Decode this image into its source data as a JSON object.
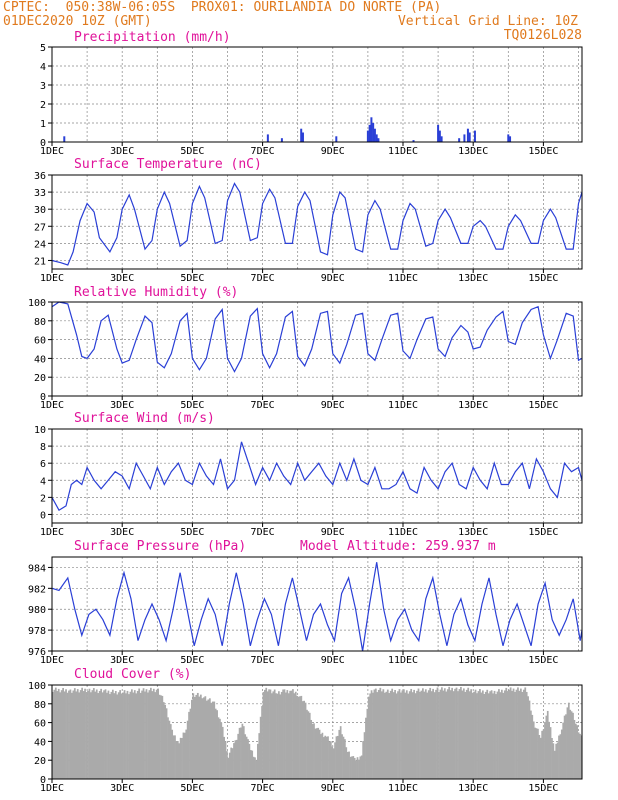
{
  "header": {
    "line1_left": "CPTEC:  050:38W-06:05S  PROX01: OURILANDIA DO NORTE (PA)",
    "line2_left": "01DEC2020 10Z (GMT)",
    "line2_right": "Vertical Grid Line: 10Z",
    "line3_right": "TQ0126L028"
  },
  "colors": {
    "line": "#2a3fd6",
    "bar": "#2a3fd6",
    "cloud": "#aaaaaa",
    "title": "#e0129a",
    "header": "#e07a1e"
  },
  "chart_data": [
    {
      "type": "bar",
      "title": "Precipitation (mm/h)",
      "ylim": [
        0,
        5
      ],
      "yticks": [
        "0",
        "1",
        "2",
        "3",
        "4",
        "5"
      ],
      "xticks": [
        "1DEC",
        "3DEC",
        "5DEC",
        "7DEC",
        "9DEC",
        "11DEC",
        "13DEC",
        "15DEC"
      ],
      "x_day_range": [
        1.0,
        16.1
      ],
      "bars": [
        {
          "x": 1.35,
          "y": 0.3
        },
        {
          "x": 7.15,
          "y": 0.4
        },
        {
          "x": 7.55,
          "y": 0.2
        },
        {
          "x": 8.1,
          "y": 0.7
        },
        {
          "x": 8.15,
          "y": 0.5
        },
        {
          "x": 9.1,
          "y": 0.3
        },
        {
          "x": 10.0,
          "y": 0.6
        },
        {
          "x": 10.05,
          "y": 0.9
        },
        {
          "x": 10.1,
          "y": 1.3
        },
        {
          "x": 10.15,
          "y": 1.0
        },
        {
          "x": 10.2,
          "y": 0.7
        },
        {
          "x": 10.25,
          "y": 0.4
        },
        {
          "x": 10.3,
          "y": 0.2
        },
        {
          "x": 11.3,
          "y": 0.1
        },
        {
          "x": 12.0,
          "y": 0.9
        },
        {
          "x": 12.05,
          "y": 0.6
        },
        {
          "x": 12.1,
          "y": 0.3
        },
        {
          "x": 12.6,
          "y": 0.2
        },
        {
          "x": 12.75,
          "y": 0.4
        },
        {
          "x": 12.85,
          "y": 0.7
        },
        {
          "x": 12.9,
          "y": 0.5
        },
        {
          "x": 13.05,
          "y": 0.6
        },
        {
          "x": 14.0,
          "y": 0.4
        },
        {
          "x": 14.05,
          "y": 0.3
        }
      ]
    },
    {
      "type": "line",
      "title": "Surface Temperature (nC)",
      "ylim": [
        19.5,
        36
      ],
      "yticks": [
        "21",
        "24",
        "27",
        "30",
        "33",
        "36"
      ],
      "ytick_values": [
        21,
        24,
        27,
        30,
        33,
        36
      ],
      "xticks": [
        "1DEC",
        "3DEC",
        "5DEC",
        "7DEC",
        "9DEC",
        "11DEC",
        "13DEC",
        "15DEC"
      ],
      "x_day_range": [
        1.0,
        16.1
      ],
      "x": [
        1.0,
        1.25,
        1.45,
        1.6,
        1.8,
        2.0,
        2.2,
        2.35,
        2.65,
        2.85,
        3.0,
        3.2,
        3.35,
        3.65,
        3.85,
        4.0,
        4.2,
        4.35,
        4.65,
        4.85,
        5.0,
        5.2,
        5.35,
        5.65,
        5.85,
        6.0,
        6.2,
        6.35,
        6.65,
        6.85,
        7.0,
        7.2,
        7.35,
        7.65,
        7.85,
        8.0,
        8.2,
        8.35,
        8.65,
        8.85,
        9.0,
        9.2,
        9.35,
        9.65,
        9.85,
        10.0,
        10.2,
        10.35,
        10.65,
        10.85,
        11.0,
        11.2,
        11.35,
        11.65,
        11.85,
        12.0,
        12.2,
        12.35,
        12.65,
        12.85,
        13.0,
        13.2,
        13.35,
        13.65,
        13.85,
        14.0,
        14.2,
        14.35,
        14.65,
        14.85,
        15.0,
        15.2,
        15.35,
        15.65,
        15.85,
        16.0,
        16.1
      ],
      "y": [
        21,
        20.6,
        20.2,
        22.5,
        28,
        31,
        29.5,
        25,
        22.5,
        25,
        30,
        32.5,
        30,
        23,
        24.5,
        30,
        33,
        31,
        23.5,
        24.5,
        31,
        34,
        32,
        24,
        24.5,
        31.5,
        34.5,
        33,
        24.5,
        25,
        31,
        33.5,
        32,
        24,
        24,
        30.5,
        33,
        31.5,
        22.5,
        22,
        29,
        33,
        32,
        23,
        22.5,
        29,
        31.5,
        30,
        23,
        23,
        28,
        31,
        30,
        23.5,
        24,
        28,
        30,
        28.5,
        24,
        24,
        27,
        28,
        27,
        23,
        23,
        27,
        29,
        28,
        24,
        24,
        28,
        30,
        28.5,
        23,
        23,
        31,
        33
      ]
    },
    {
      "type": "line",
      "title": "Relative Humidity (%)",
      "ylim": [
        0,
        100
      ],
      "yticks": [
        "0",
        "20",
        "40",
        "60",
        "80",
        "100"
      ],
      "ytick_values": [
        0,
        20,
        40,
        60,
        80,
        100
      ],
      "xticks": [
        "1DEC",
        "3DEC",
        "5DEC",
        "7DEC",
        "9DEC",
        "11DEC",
        "13DEC",
        "15DEC"
      ],
      "x_day_range": [
        1.0,
        16.1
      ],
      "x": [
        1.0,
        1.2,
        1.45,
        1.7,
        1.85,
        2.0,
        2.2,
        2.4,
        2.6,
        2.85,
        3.0,
        3.2,
        3.4,
        3.65,
        3.85,
        4.0,
        4.2,
        4.4,
        4.65,
        4.85,
        5.0,
        5.2,
        5.4,
        5.65,
        5.85,
        6.0,
        6.2,
        6.4,
        6.65,
        6.85,
        7.0,
        7.2,
        7.4,
        7.65,
        7.85,
        8.0,
        8.2,
        8.4,
        8.65,
        8.85,
        9.0,
        9.2,
        9.4,
        9.65,
        9.85,
        10.0,
        10.2,
        10.4,
        10.65,
        10.85,
        11.0,
        11.2,
        11.4,
        11.65,
        11.85,
        12.0,
        12.2,
        12.4,
        12.65,
        12.85,
        13.0,
        13.2,
        13.4,
        13.65,
        13.85,
        14.0,
        14.2,
        14.4,
        14.65,
        14.85,
        15.0,
        15.2,
        15.4,
        15.65,
        15.85,
        16.0,
        16.1
      ],
      "y": [
        95,
        100,
        98,
        65,
        42,
        40,
        50,
        80,
        86,
        50,
        35,
        38,
        60,
        85,
        78,
        36,
        30,
        45,
        80,
        88,
        40,
        28,
        40,
        82,
        92,
        40,
        26,
        40,
        85,
        93,
        45,
        30,
        45,
        84,
        90,
        42,
        32,
        50,
        88,
        90,
        45,
        35,
        55,
        86,
        88,
        45,
        38,
        60,
        86,
        88,
        48,
        40,
        60,
        82,
        84,
        50,
        42,
        62,
        75,
        68,
        50,
        52,
        70,
        84,
        90,
        58,
        55,
        78,
        92,
        95,
        65,
        40,
        60,
        88,
        85,
        38,
        40
      ]
    },
    {
      "type": "line",
      "title": "Surface Wind (m/s)",
      "ylim": [
        -1,
        10
      ],
      "yticks": [
        "0",
        "2",
        "4",
        "6",
        "8",
        "10"
      ],
      "ytick_values": [
        0,
        2,
        4,
        6,
        8,
        10
      ],
      "xticks": [
        "1DEC",
        "3DEC",
        "5DEC",
        "7DEC",
        "9DEC",
        "11DEC",
        "13DEC",
        "15DEC"
      ],
      "x_day_range": [
        1.0,
        16.1
      ],
      "x": [
        1.0,
        1.2,
        1.4,
        1.55,
        1.7,
        1.85,
        2.0,
        2.2,
        2.4,
        2.6,
        2.8,
        3.0,
        3.2,
        3.4,
        3.6,
        3.8,
        4.0,
        4.2,
        4.4,
        4.6,
        4.8,
        5.0,
        5.2,
        5.4,
        5.6,
        5.8,
        6.0,
        6.2,
        6.4,
        6.6,
        6.8,
        7.0,
        7.2,
        7.4,
        7.6,
        7.8,
        8.0,
        8.2,
        8.4,
        8.6,
        8.8,
        9.0,
        9.2,
        9.4,
        9.6,
        9.8,
        10.0,
        10.2,
        10.4,
        10.6,
        10.8,
        11.0,
        11.2,
        11.4,
        11.6,
        11.8,
        12.0,
        12.2,
        12.4,
        12.6,
        12.8,
        13.0,
        13.2,
        13.4,
        13.6,
        13.8,
        14.0,
        14.2,
        14.4,
        14.6,
        14.8,
        15.0,
        15.2,
        15.4,
        15.6,
        15.8,
        16.0,
        16.1
      ],
      "y": [
        2,
        0.5,
        1,
        3.5,
        4,
        3.5,
        5.5,
        4,
        3,
        4,
        5,
        4.5,
        3,
        6,
        4.5,
        3,
        5.5,
        3.5,
        5,
        6,
        4,
        3.5,
        6,
        4.5,
        3.5,
        6.5,
        3,
        4,
        8.5,
        6,
        3.5,
        5.5,
        4,
        6,
        4.5,
        3.5,
        6,
        4,
        5,
        6,
        4.5,
        3.5,
        6,
        4,
        6.5,
        4,
        3.5,
        5.5,
        3,
        3,
        3.5,
        5,
        3,
        2.5,
        5.5,
        4,
        3,
        5,
        6,
        3.5,
        3,
        5.5,
        4,
        3,
        6,
        3.5,
        3.5,
        5,
        6,
        3,
        6.5,
        5,
        3,
        2,
        6,
        5,
        5.5,
        4
      ]
    },
    {
      "type": "line",
      "title": "Surface Pressure (hPa)",
      "subtitle": "Model Altitude: 259.937 m",
      "ylim": [
        976,
        985
      ],
      "yticks": [
        "976",
        "978",
        "980",
        "982",
        "984"
      ],
      "ytick_values": [
        976,
        978,
        980,
        982,
        984
      ],
      "xticks": [
        "1DEC",
        "3DEC",
        "5DEC",
        "7DEC",
        "9DEC",
        "11DEC",
        "13DEC",
        "15DEC"
      ],
      "x_day_range": [
        1.0,
        16.1
      ],
      "x": [
        1.0,
        1.2,
        1.45,
        1.65,
        1.85,
        2.05,
        2.25,
        2.45,
        2.65,
        2.85,
        3.05,
        3.25,
        3.45,
        3.65,
        3.85,
        4.05,
        4.25,
        4.45,
        4.65,
        4.85,
        5.05,
        5.25,
        5.45,
        5.65,
        5.85,
        6.05,
        6.25,
        6.45,
        6.65,
        6.85,
        7.05,
        7.25,
        7.45,
        7.65,
        7.85,
        8.05,
        8.25,
        8.45,
        8.65,
        8.85,
        9.05,
        9.25,
        9.45,
        9.65,
        9.85,
        10.05,
        10.25,
        10.45,
        10.65,
        10.85,
        11.05,
        11.25,
        11.45,
        11.65,
        11.85,
        12.05,
        12.25,
        12.45,
        12.65,
        12.85,
        13.05,
        13.25,
        13.45,
        13.65,
        13.85,
        14.05,
        14.25,
        14.45,
        14.65,
        14.85,
        15.05,
        15.25,
        15.45,
        15.65,
        15.85,
        16.05,
        16.1
      ],
      "y": [
        982,
        981.8,
        983,
        980,
        977.5,
        979.5,
        980,
        979,
        977.5,
        981,
        983.5,
        981,
        977,
        979,
        980.5,
        979,
        977,
        980,
        983.5,
        980,
        976.5,
        979,
        981,
        979.5,
        976.5,
        980.5,
        983.5,
        980.5,
        976.5,
        979,
        981,
        979.5,
        976.5,
        980.5,
        983,
        980,
        977,
        979.5,
        980.5,
        978.5,
        977,
        981.5,
        983,
        980,
        976,
        980.5,
        984.5,
        980,
        977,
        979,
        980,
        978,
        977,
        981,
        983,
        979.5,
        976.5,
        979.5,
        981,
        978.5,
        977,
        980.5,
        983,
        979.5,
        976.5,
        979,
        980.5,
        978.5,
        976.5,
        980.5,
        982.5,
        979,
        977.5,
        979,
        981,
        977,
        978
      ]
    },
    {
      "type": "area",
      "title": "Cloud Cover (%)",
      "ylim": [
        0,
        100
      ],
      "yticks": [
        "0",
        "20",
        "40",
        "60",
        "80",
        "100"
      ],
      "ytick_values": [
        0,
        20,
        40,
        60,
        80,
        100
      ],
      "xticks": [
        "1DEC",
        "3DEC",
        "5DEC",
        "7DEC",
        "9DEC",
        "11DEC",
        "13DEC",
        "15DEC"
      ],
      "x_day_range": [
        1.0,
        16.1
      ],
      "x": [
        1.0,
        1.5,
        2.0,
        2.5,
        3.0,
        3.5,
        4.0,
        4.2,
        4.4,
        4.6,
        4.8,
        5.0,
        5.3,
        5.6,
        5.8,
        6.0,
        6.2,
        6.4,
        6.6,
        6.8,
        7.0,
        7.2,
        7.4,
        7.6,
        7.8,
        8.0,
        8.2,
        8.4,
        8.6,
        8.8,
        9.0,
        9.2,
        9.4,
        9.6,
        9.8,
        10.0,
        10.2,
        10.5,
        11.0,
        11.5,
        12.0,
        12.5,
        13.0,
        13.5,
        14.0,
        14.5,
        14.7,
        14.9,
        15.1,
        15.3,
        15.5,
        15.7,
        15.9,
        16.1
      ],
      "y": [
        95,
        94,
        95,
        93,
        92,
        94,
        95,
        80,
        50,
        38,
        55,
        90,
        88,
        80,
        60,
        25,
        40,
        60,
        35,
        20,
        95,
        94,
        92,
        93,
        94,
        90,
        80,
        60,
        50,
        45,
        35,
        55,
        30,
        20,
        25,
        90,
        95,
        94,
        93,
        94,
        95,
        96,
        94,
        92,
        95,
        95,
        60,
        45,
        70,
        30,
        55,
        80,
        60,
        40
      ]
    }
  ]
}
